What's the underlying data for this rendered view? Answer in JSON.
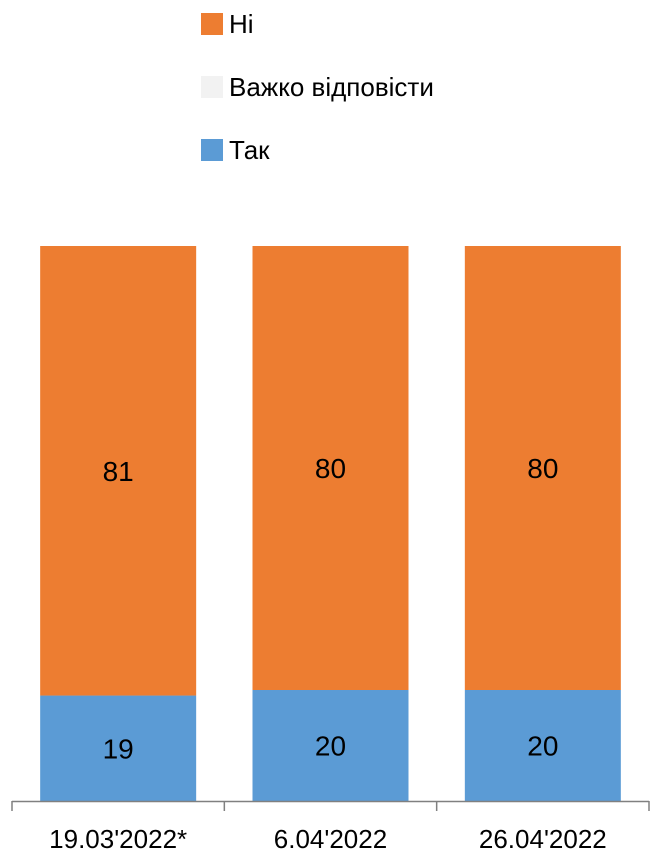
{
  "chart_data": {
    "type": "bar",
    "stacked": true,
    "orientation": "vertical",
    "categories": [
      "19.03'2022*",
      "6.04'2022",
      "26.04'2022"
    ],
    "series": [
      {
        "name": "Так",
        "values": [
          19,
          20,
          20
        ],
        "color": "#5B9BD5"
      },
      {
        "name": "Важко відповісти",
        "values": [
          0,
          0,
          0
        ],
        "color": "#F2F2F2"
      },
      {
        "name": "Ні",
        "values": [
          81,
          80,
          80
        ],
        "color": "#ED7D31"
      }
    ],
    "data_labels": [
      [
        "19",
        "20",
        "20"
      ],
      [
        "",
        "",
        ""
      ],
      [
        "81",
        "80",
        "80"
      ]
    ],
    "ylim": [
      0,
      100
    ],
    "grid": false,
    "legend_position": "top",
    "legend_order": [
      "Ні",
      "Важко відповісти",
      "Так"
    ],
    "title": "",
    "xlabel": "",
    "ylabel": ""
  }
}
